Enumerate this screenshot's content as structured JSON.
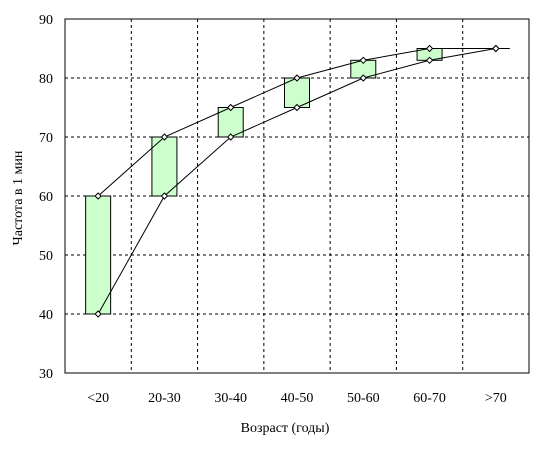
{
  "chart_data": {
    "type": "floating-bar-with-lines",
    "title": "",
    "xlabel": "Возраст (годы)",
    "ylabel": "Частота в 1 мин",
    "categories": [
      "<20",
      "20-30",
      "30-40",
      "40-50",
      "50-60",
      "60-70",
      ">70"
    ],
    "ylim": [
      30,
      90
    ],
    "yticks": [
      30,
      40,
      50,
      60,
      70,
      80,
      90
    ],
    "grid": true,
    "grid_style": "dashed",
    "series": [
      {
        "values": [
          60,
          70,
          75,
          80,
          83,
          85,
          85
        ]
      },
      {
        "values": [
          40,
          60,
          70,
          75,
          80,
          83,
          85
        ]
      }
    ],
    "colors": {
      "bar_fill": "#ccffcc",
      "line": "#000000",
      "marker_fill": "#ffffff"
    }
  }
}
